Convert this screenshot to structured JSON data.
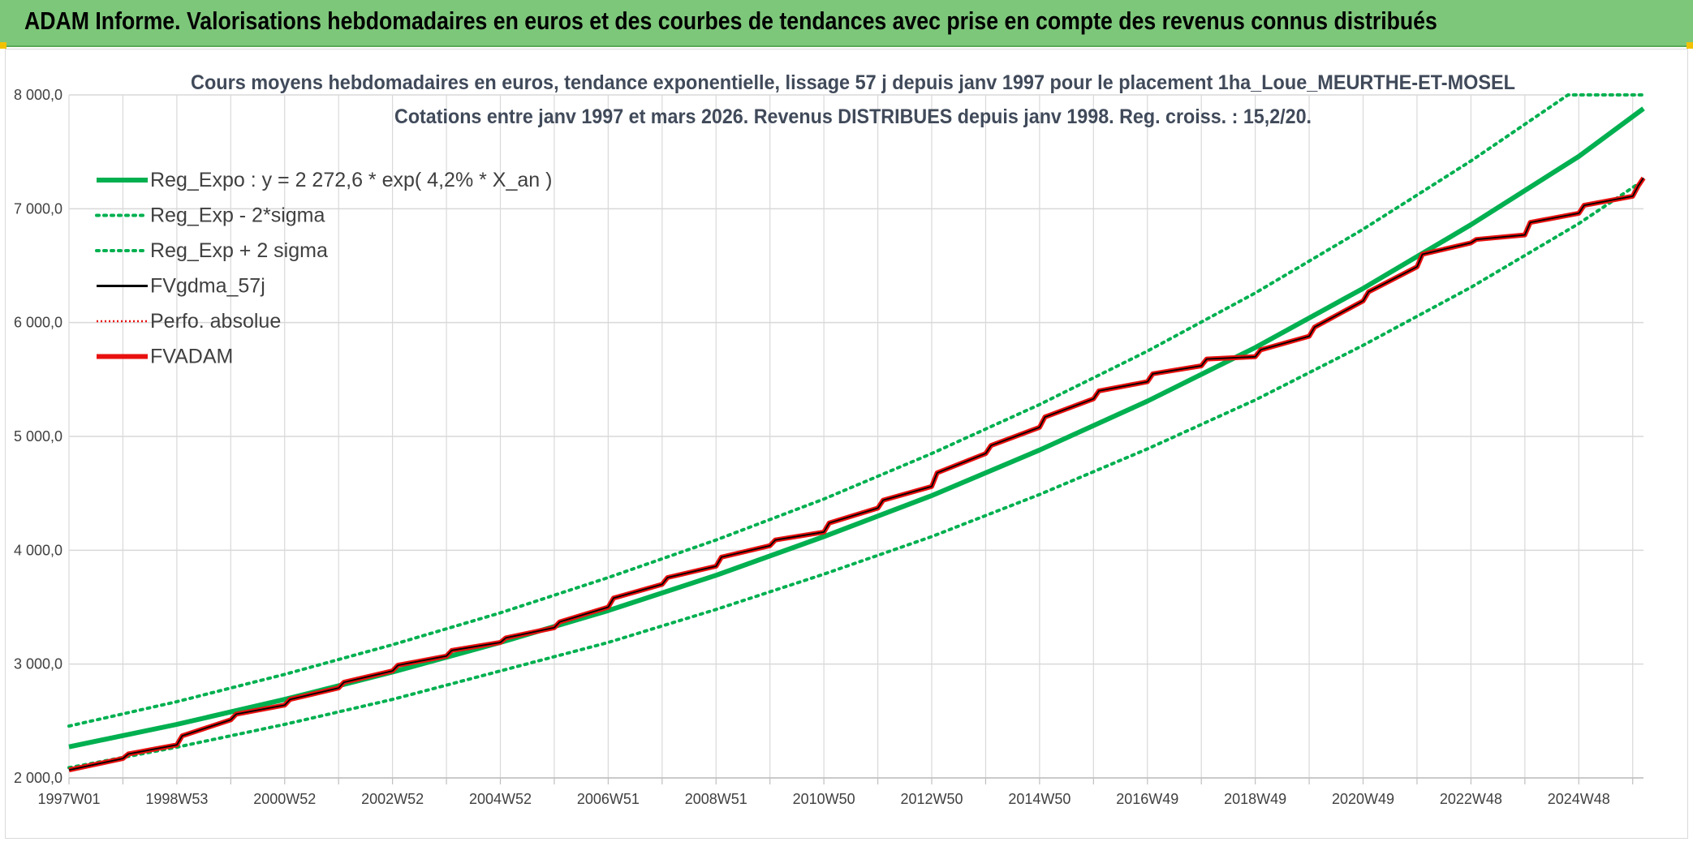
{
  "header": {
    "title": "ADAM Informe. Valorisations hebdomadaires en euros et des courbes de tendances avec prise en compte des revenus connus distribués"
  },
  "colors": {
    "banner": "#7dc77a",
    "green": "#00b050",
    "red": "#e8110f",
    "black": "#000000",
    "grid": "#d9d9d9"
  },
  "chart_data": {
    "type": "line",
    "title": "Cours moyens hebdomadaires en euros, tendance exponentielle, lissage 57 j depuis janv 1997 pour le placement 1ha_Loue_MEURTHE-ET-MOSEL",
    "subtitle": "Cotations entre janv 1997 et mars 2026. Revenus DISTRIBUES depuis janv 1998. Reg. croiss. : 15,2/20.",
    "xlabel": "",
    "ylabel": "",
    "ylim": [
      2000,
      8000
    ],
    "grid": true,
    "legend_position": "top-left",
    "y_ticks": [
      "2 000,0",
      "3 000,0",
      "4 000,0",
      "5 000,0",
      "6 000,0",
      "7 000,0",
      "8 000,0"
    ],
    "x_ticks": [
      "1997W01",
      "1998W53",
      "2000W52",
      "2002W52",
      "2004W52",
      "2006W51",
      "2008W51",
      "2010W50",
      "2012W50",
      "2014W50",
      "2016W49",
      "2018W49",
      "2020W49",
      "2022W48",
      "2024W48"
    ],
    "x_range_years": [
      1997.0,
      2026.2
    ],
    "legend": [
      {
        "label": "Reg_Expo : y = 2 272,6 * exp( 4,2% *  X_an )",
        "color": "#00b050",
        "style": "solid-thick"
      },
      {
        "label": "Reg_Exp - 2*sigma",
        "color": "#00b050",
        "style": "dotted"
      },
      {
        "label": "Reg_Exp + 2 sigma",
        "color": "#00b050",
        "style": "dotted"
      },
      {
        "label": "FVgdma_57j",
        "color": "#000000",
        "style": "solid"
      },
      {
        "label": "Perfo. absolue",
        "color": "#e8110f",
        "style": "dotted"
      },
      {
        "label": "FVADAM",
        "color": "#e8110f",
        "style": "solid-thick"
      }
    ],
    "series": [
      {
        "name": "Reg_Expo : y = 2 272,6 * exp( 4,2% *  X_an )",
        "x": [
          1997,
          1999,
          2001,
          2003,
          2005,
          2007,
          2009,
          2011,
          2013,
          2015,
          2017,
          2019,
          2021,
          2023,
          2025,
          2026.2
        ],
        "values": [
          2272.6,
          2470,
          2690,
          2930,
          3190,
          3470,
          3780,
          4120,
          4480,
          4880,
          5310,
          5780,
          6300,
          6860,
          7460,
          7880
        ]
      },
      {
        "name": "Reg_Exp - 2*sigma",
        "x": [
          1997,
          1999,
          2001,
          2003,
          2005,
          2007,
          2009,
          2011,
          2013,
          2015,
          2017,
          2019,
          2021,
          2023,
          2025,
          2026.2
        ],
        "values": [
          2090,
          2270,
          2470,
          2690,
          2940,
          3190,
          3480,
          3790,
          4120,
          4490,
          4890,
          5320,
          5800,
          6310,
          6870,
          7250
        ]
      },
      {
        "name": "Reg_Exp + 2 sigma",
        "x": [
          1997,
          1999,
          2001,
          2003,
          2005,
          2007,
          2009,
          2011,
          2013,
          2015,
          2017,
          2019,
          2021,
          2023,
          2024.8,
          2026.2
        ],
        "values": [
          2455,
          2670,
          2910,
          3170,
          3450,
          3760,
          4090,
          4450,
          4850,
          5280,
          5750,
          6260,
          6820,
          7420,
          8000,
          8000
        ]
      },
      {
        "name": "FVADAM",
        "x": [
          1997.0,
          1998.0,
          1998.1,
          1999.0,
          1999.1,
          2000.0,
          2000.1,
          2001.0,
          2001.1,
          2002.0,
          2002.1,
          2003.0,
          2003.1,
          2004.0,
          2004.1,
          2005.0,
          2005.1,
          2006.0,
          2006.1,
          2007.0,
          2007.1,
          2008.0,
          2008.1,
          2009.0,
          2009.1,
          2010.0,
          2010.1,
          2011.0,
          2011.1,
          2012.0,
          2012.1,
          2013.0,
          2013.1,
          2014.0,
          2014.1,
          2015.0,
          2015.1,
          2016.0,
          2016.1,
          2017.0,
          2017.1,
          2018.0,
          2018.1,
          2019.0,
          2019.1,
          2020.0,
          2020.1,
          2021.0,
          2021.1,
          2022.0,
          2022.1,
          2023.0,
          2023.1,
          2024.0,
          2024.1,
          2025.0,
          2025.1,
          2026.0,
          2026.1,
          2026.2
        ],
        "values": [
          2070,
          2170,
          2210,
          2290,
          2370,
          2510,
          2560,
          2640,
          2690,
          2790,
          2840,
          2940,
          2990,
          3070,
          3120,
          3190,
          3230,
          3320,
          3370,
          3500,
          3580,
          3700,
          3760,
          3860,
          3940,
          4040,
          4090,
          4160,
          4240,
          4370,
          4440,
          4560,
          4680,
          4850,
          4920,
          5080,
          5170,
          5330,
          5400,
          5480,
          5550,
          5620,
          5680,
          5700,
          5760,
          5880,
          5960,
          6190,
          6270,
          6490,
          6600,
          6700,
          6730,
          6770,
          6880,
          6960,
          7030,
          7110,
          7200,
          7270
        ]
      },
      {
        "name": "FVgdma_57j",
        "x": [
          1997.0,
          1998.0,
          1998.1,
          1999.0,
          1999.1,
          2000.0,
          2000.1,
          2001.0,
          2001.1,
          2002.0,
          2002.1,
          2003.0,
          2003.1,
          2004.0,
          2004.1,
          2005.0,
          2005.1,
          2006.0,
          2006.1,
          2007.0,
          2007.1,
          2008.0,
          2008.1,
          2009.0,
          2009.1,
          2010.0,
          2010.1,
          2011.0,
          2011.1,
          2012.0,
          2012.1,
          2013.0,
          2013.1,
          2014.0,
          2014.1,
          2015.0,
          2015.1,
          2016.0,
          2016.1,
          2017.0,
          2017.1,
          2018.0,
          2018.1,
          2019.0,
          2019.1,
          2020.0,
          2020.1,
          2021.0,
          2021.1,
          2022.0,
          2022.1,
          2023.0,
          2023.1,
          2024.0,
          2024.1,
          2025.0,
          2025.1,
          2026.0,
          2026.1,
          2026.2
        ],
        "values": [
          2070,
          2170,
          2210,
          2290,
          2370,
          2510,
          2560,
          2640,
          2690,
          2790,
          2840,
          2940,
          2990,
          3070,
          3120,
          3190,
          3230,
          3320,
          3370,
          3500,
          3580,
          3700,
          3760,
          3860,
          3940,
          4040,
          4090,
          4160,
          4240,
          4370,
          4440,
          4560,
          4680,
          4850,
          4920,
          5080,
          5170,
          5330,
          5400,
          5480,
          5550,
          5620,
          5680,
          5700,
          5760,
          5880,
          5960,
          6190,
          6270,
          6490,
          6600,
          6700,
          6730,
          6770,
          6880,
          6960,
          7030,
          7110,
          7200,
          7270
        ]
      }
    ]
  }
}
